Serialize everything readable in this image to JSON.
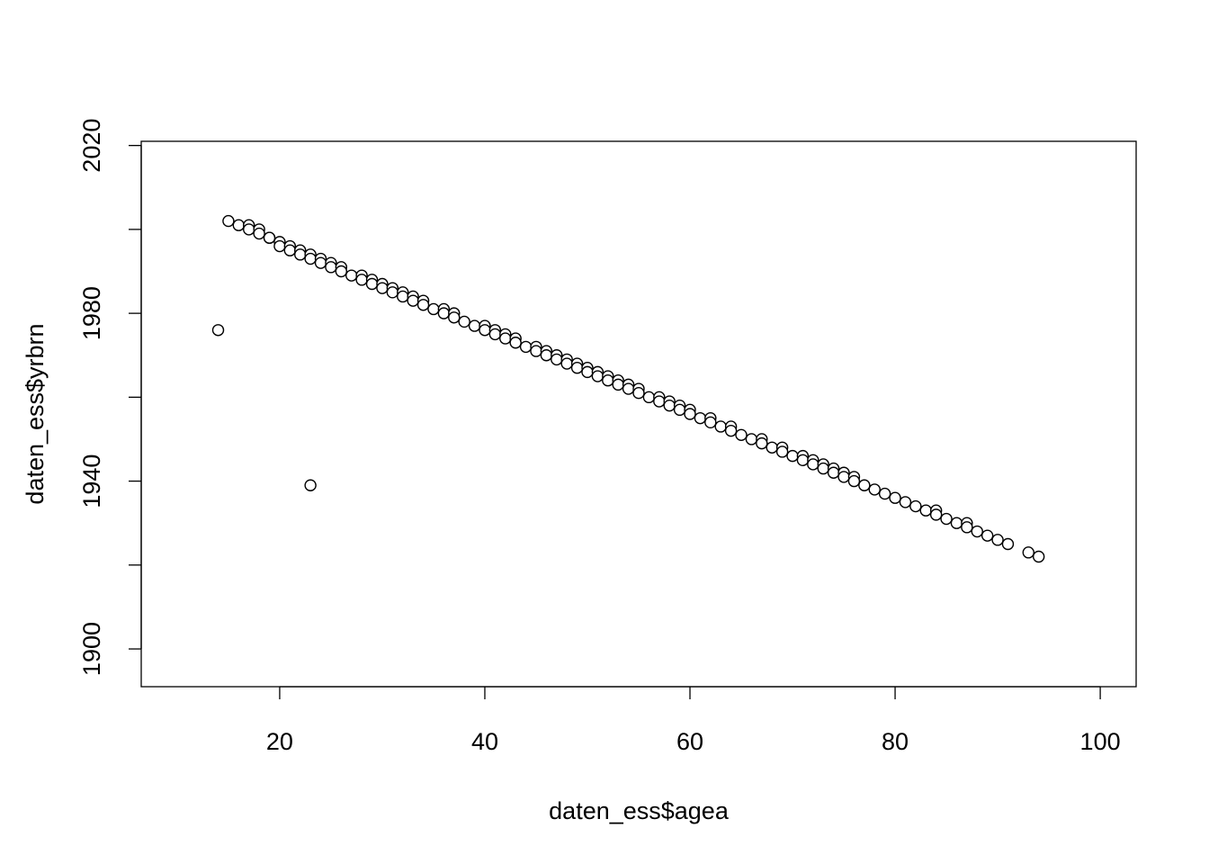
{
  "chart_data": {
    "type": "scatter",
    "title": "",
    "xlabel": "daten_ess$agea",
    "ylabel": "daten_ess$yrbrn",
    "xlim": [
      6.5,
      103.5
    ],
    "ylim": [
      1891,
      2021
    ],
    "x_ticks": [
      20,
      40,
      60,
      80,
      100
    ],
    "y_ticks": [
      1900,
      1920,
      1940,
      1960,
      1980,
      2000,
      2020
    ],
    "y_tick_labels": [
      "1900",
      "",
      "1940",
      "",
      "1980",
      "",
      "2020"
    ],
    "grid": false,
    "legend": "none",
    "point_color": "#000000",
    "points": [
      [
        14,
        1976
      ],
      [
        23,
        1939
      ],
      [
        15,
        2002
      ],
      [
        16,
        2001
      ],
      [
        17,
        2001
      ],
      [
        17,
        2000
      ],
      [
        18,
        2000
      ],
      [
        18,
        1999
      ],
      [
        19,
        1998
      ],
      [
        19,
        1998
      ],
      [
        20,
        1997
      ],
      [
        20,
        1996
      ],
      [
        21,
        1996
      ],
      [
        21,
        1995
      ],
      [
        22,
        1995
      ],
      [
        22,
        1994
      ],
      [
        23,
        1994
      ],
      [
        23,
        1993
      ],
      [
        24,
        1993
      ],
      [
        24,
        1992
      ],
      [
        25,
        1992
      ],
      [
        25,
        1991
      ],
      [
        26,
        1991
      ],
      [
        26,
        1990
      ],
      [
        27,
        1989
      ],
      [
        28,
        1989
      ],
      [
        28,
        1988
      ],
      [
        29,
        1988
      ],
      [
        29,
        1987
      ],
      [
        30,
        1987
      ],
      [
        30,
        1986
      ],
      [
        31,
        1986
      ],
      [
        31,
        1985
      ],
      [
        32,
        1985
      ],
      [
        32,
        1984
      ],
      [
        33,
        1984
      ],
      [
        33,
        1983
      ],
      [
        34,
        1983
      ],
      [
        34,
        1982
      ],
      [
        35,
        1981
      ],
      [
        36,
        1981
      ],
      [
        36,
        1980
      ],
      [
        37,
        1980
      ],
      [
        37,
        1979
      ],
      [
        38,
        1978
      ],
      [
        39,
        1977
      ],
      [
        40,
        1977
      ],
      [
        40,
        1976
      ],
      [
        41,
        1976
      ],
      [
        41,
        1975
      ],
      [
        42,
        1975
      ],
      [
        42,
        1974
      ],
      [
        43,
        1974
      ],
      [
        43,
        1973
      ],
      [
        44,
        1972
      ],
      [
        45,
        1972
      ],
      [
        45,
        1971
      ],
      [
        46,
        1971
      ],
      [
        46,
        1970
      ],
      [
        47,
        1970
      ],
      [
        47,
        1969
      ],
      [
        48,
        1969
      ],
      [
        48,
        1968
      ],
      [
        49,
        1968
      ],
      [
        49,
        1967
      ],
      [
        50,
        1967
      ],
      [
        50,
        1966
      ],
      [
        51,
        1966
      ],
      [
        51,
        1965
      ],
      [
        52,
        1965
      ],
      [
        52,
        1964
      ],
      [
        53,
        1964
      ],
      [
        53,
        1963
      ],
      [
        54,
        1963
      ],
      [
        54,
        1962
      ],
      [
        55,
        1962
      ],
      [
        55,
        1961
      ],
      [
        56,
        1960
      ],
      [
        57,
        1960
      ],
      [
        57,
        1959
      ],
      [
        58,
        1959
      ],
      [
        58,
        1958
      ],
      [
        59,
        1958
      ],
      [
        59,
        1957
      ],
      [
        60,
        1957
      ],
      [
        60,
        1956
      ],
      [
        61,
        1955
      ],
      [
        62,
        1955
      ],
      [
        62,
        1954
      ],
      [
        63,
        1953
      ],
      [
        64,
        1953
      ],
      [
        64,
        1952
      ],
      [
        65,
        1951
      ],
      [
        66,
        1950
      ],
      [
        67,
        1950
      ],
      [
        67,
        1949
      ],
      [
        68,
        1948
      ],
      [
        69,
        1948
      ],
      [
        69,
        1947
      ],
      [
        70,
        1946
      ],
      [
        71,
        1946
      ],
      [
        71,
        1945
      ],
      [
        72,
        1945
      ],
      [
        72,
        1944
      ],
      [
        73,
        1944
      ],
      [
        73,
        1943
      ],
      [
        74,
        1943
      ],
      [
        74,
        1942
      ],
      [
        75,
        1942
      ],
      [
        75,
        1941
      ],
      [
        76,
        1941
      ],
      [
        76,
        1940
      ],
      [
        77,
        1939
      ],
      [
        78,
        1938
      ],
      [
        79,
        1937
      ],
      [
        80,
        1936
      ],
      [
        81,
        1935
      ],
      [
        82,
        1934
      ],
      [
        83,
        1933
      ],
      [
        84,
        1933
      ],
      [
        84,
        1932
      ],
      [
        85,
        1931
      ],
      [
        86,
        1930
      ],
      [
        87,
        1930
      ],
      [
        87,
        1929
      ],
      [
        88,
        1928
      ],
      [
        89,
        1927
      ],
      [
        90,
        1926
      ],
      [
        91,
        1925
      ],
      [
        93,
        1923
      ],
      [
        94,
        1922
      ]
    ]
  }
}
